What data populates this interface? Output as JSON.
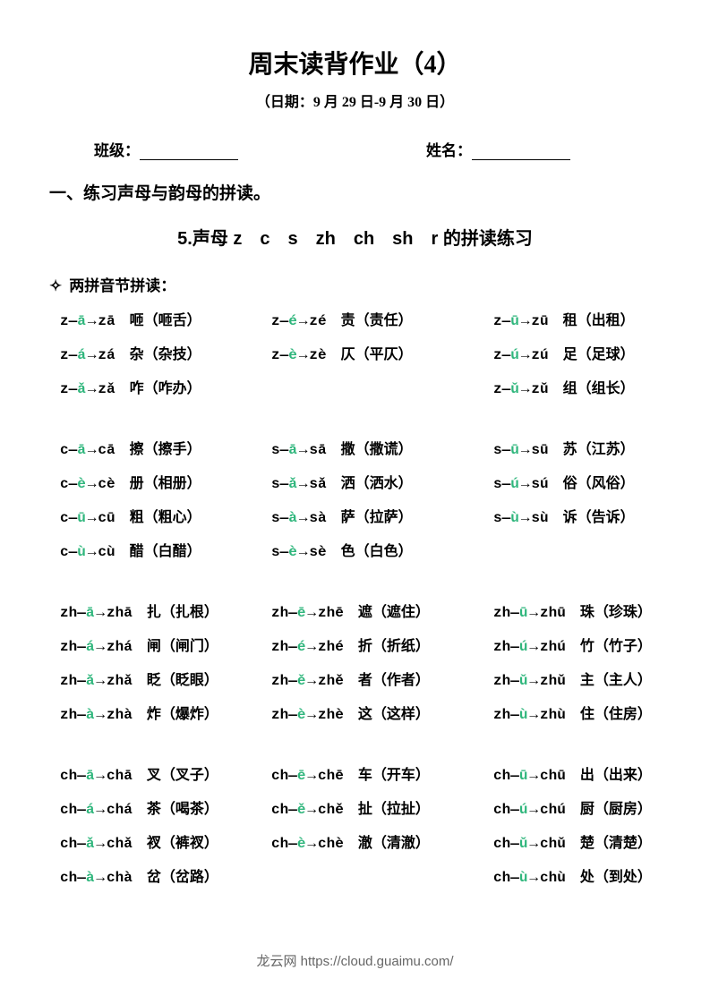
{
  "title": "周末读背作业（4）",
  "date_line": "（日期：9 月 29 日-9 月 30 日）",
  "field_class_label": "班级：",
  "field_name_label": "姓名：",
  "section1": "一、练习声母与韵母的拼读。",
  "subtitle": "5.声母 z　c　s　zh　ch　sh　r 的拼读练习",
  "subsection_label": "两拼音节拼读：",
  "colors": {
    "tone": "#2fb67c",
    "text": "#000000",
    "bg": "#ffffff",
    "footer": "#666666"
  },
  "groups": [
    {
      "rows": [
        {
          "c1": {
            "i": "z",
            "v": "ā",
            "s": "zā",
            "cn": "咂（咂舌）"
          },
          "c2": {
            "i": "z",
            "v": "é",
            "s": "zé",
            "cn": "责（责任）"
          },
          "c3": {
            "i": "z",
            "v": "ū",
            "s": "zū",
            "cn": "租（出租）"
          }
        },
        {
          "c1": {
            "i": "z",
            "v": "á",
            "s": "zá",
            "cn": "杂（杂技）"
          },
          "c2": {
            "i": "z",
            "v": "è",
            "s": "zè",
            "cn": "仄（平仄）"
          },
          "c3": {
            "i": "z",
            "v": "ú",
            "s": "zú",
            "cn": "足（足球）"
          }
        },
        {
          "c1": {
            "i": "z",
            "v": "ǎ",
            "s": "zǎ",
            "cn": "咋（咋办）"
          },
          "c2": null,
          "c3": {
            "i": "z",
            "v": "ǔ",
            "s": "zǔ",
            "cn": "组（组长）"
          }
        }
      ]
    },
    {
      "rows": [
        {
          "c1": {
            "i": "c",
            "v": "ā",
            "s": "cā",
            "cn": "擦（擦手）"
          },
          "c2": {
            "i": "s",
            "v": "ā",
            "s": "sā",
            "cn": "撒（撒谎）"
          },
          "c3": {
            "i": "s",
            "v": "ū",
            "s": "sū",
            "cn": "苏（江苏）"
          }
        },
        {
          "c1": {
            "i": "c",
            "v": "è",
            "s": "cè",
            "cn": "册（相册）"
          },
          "c2": {
            "i": "s",
            "v": "ǎ",
            "s": "sǎ",
            "cn": "洒（洒水）"
          },
          "c3": {
            "i": "s",
            "v": "ú",
            "s": "sú",
            "cn": "俗（风俗）"
          }
        },
        {
          "c1": {
            "i": "c",
            "v": "ū",
            "s": "cū",
            "cn": "粗（粗心）"
          },
          "c2": {
            "i": "s",
            "v": "à",
            "s": "sà",
            "cn": "萨（拉萨）"
          },
          "c3": {
            "i": "s",
            "v": "ù",
            "s": "sù",
            "cn": "诉（告诉）"
          }
        },
        {
          "c1": {
            "i": "c",
            "v": "ù",
            "s": "cù",
            "cn": "醋（白醋）"
          },
          "c2": {
            "i": "s",
            "v": "è",
            "s": "sè",
            "cn": "色（白色）"
          },
          "c3": null
        }
      ]
    },
    {
      "rows": [
        {
          "c1": {
            "i": "zh",
            "v": "ā",
            "s": "zhā",
            "cn": "扎（扎根）"
          },
          "c2": {
            "i": "zh",
            "v": "ē",
            "s": "zhē",
            "cn": "遮（遮住）"
          },
          "c3": {
            "i": "zh",
            "v": "ū",
            "s": "zhū",
            "cn": "珠（珍珠）"
          }
        },
        {
          "c1": {
            "i": "zh",
            "v": "á",
            "s": "zhá",
            "cn": "闸（闸门）"
          },
          "c2": {
            "i": "zh",
            "v": "é",
            "s": "zhé",
            "cn": "折（折纸）"
          },
          "c3": {
            "i": "zh",
            "v": "ú",
            "s": "zhú",
            "cn": "竹（竹子）"
          }
        },
        {
          "c1": {
            "i": "zh",
            "v": "ǎ",
            "s": "zhǎ",
            "cn": "眨（眨眼）"
          },
          "c2": {
            "i": "zh",
            "v": "ě",
            "s": "zhě",
            "cn": "者（作者）"
          },
          "c3": {
            "i": "zh",
            "v": "ǔ",
            "s": "zhǔ",
            "cn": "主（主人）"
          }
        },
        {
          "c1": {
            "i": "zh",
            "v": "à",
            "s": "zhà",
            "cn": "炸（爆炸）"
          },
          "c2": {
            "i": "zh",
            "v": "è",
            "s": "zhè",
            "cn": "这（这样）"
          },
          "c3": {
            "i": "zh",
            "v": "ù",
            "s": "zhù",
            "cn": "住（住房）"
          }
        }
      ]
    },
    {
      "rows": [
        {
          "c1": {
            "i": "ch",
            "v": "ā",
            "s": "chā",
            "cn": "叉（叉子）"
          },
          "c2": {
            "i": "ch",
            "v": "ē",
            "s": "chē",
            "cn": "车（开车）"
          },
          "c3": {
            "i": "ch",
            "v": "ū",
            "s": "chū",
            "cn": "出（出来）"
          }
        },
        {
          "c1": {
            "i": "ch",
            "v": "á",
            "s": "chá",
            "cn": "茶（喝茶）"
          },
          "c2": {
            "i": "ch",
            "v": "ě",
            "s": "chě",
            "cn": "扯（拉扯）"
          },
          "c3": {
            "i": "ch",
            "v": "ú",
            "s": "chú",
            "cn": "厨（厨房）"
          }
        },
        {
          "c1": {
            "i": "ch",
            "v": "ǎ",
            "s": "chǎ",
            "cn": "衩（裤衩）"
          },
          "c2": {
            "i": "ch",
            "v": "è",
            "s": "chè",
            "cn": "澈（清澈）"
          },
          "c3": {
            "i": "ch",
            "v": "ǔ",
            "s": "chǔ",
            "cn": "楚（清楚）"
          }
        },
        {
          "c1": {
            "i": "ch",
            "v": "à",
            "s": "chà",
            "cn": "岔（岔路）"
          },
          "c2": null,
          "c3": {
            "i": "ch",
            "v": "ù",
            "s": "chù",
            "cn": "处（到处）"
          }
        }
      ]
    }
  ],
  "footer": "龙云网 https://cloud.guaimu.com/"
}
